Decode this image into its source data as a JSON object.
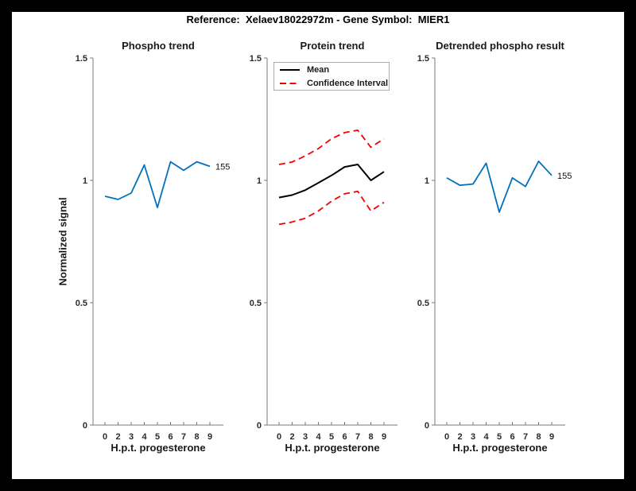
{
  "figure": {
    "suptitle": "Reference:  Xelaev18022972m - Gene Symbol:  MIER1",
    "frame_color": "#000000",
    "canvas_color": "#ffffff"
  },
  "axes": {
    "ylabel": "Normalized signal",
    "xlabel": "H.p.t. progesterone",
    "axis_color": "#7a7a7a",
    "tick_text_color": "#2b2b2b"
  },
  "chart_data": [
    {
      "type": "line",
      "title": "Phospho trend",
      "xlabel": "H.p.t. progesterone",
      "ylabel": "Normalized signal",
      "x_tick_labels": [
        "0",
        "2",
        "3",
        "4",
        "5",
        "6",
        "7",
        "8",
        "9"
      ],
      "y_tick_labels": [
        "0",
        "0.5",
        "1",
        "1.5"
      ],
      "ylim": [
        0,
        1.5
      ],
      "grid": false,
      "right_label": "155",
      "series": [
        {
          "name": "phospho-signal",
          "color": "#0072BD",
          "style": "solid",
          "width": 1.8,
          "values": [
            0.935,
            0.922,
            0.948,
            1.063,
            0.889,
            1.076,
            1.041,
            1.076,
            1.057
          ]
        }
      ]
    },
    {
      "type": "line",
      "title": "Protein trend",
      "xlabel": "H.p.t. progesterone",
      "x_tick_labels": [
        "0",
        "2",
        "3",
        "4",
        "5",
        "6",
        "7",
        "8",
        "9"
      ],
      "y_tick_labels": [
        "0",
        "0.5",
        "1",
        "1.5"
      ],
      "ylim": [
        0,
        1.5
      ],
      "grid": false,
      "legend_position": "top-left",
      "legend": [
        {
          "label": "Mean",
          "color": "#000000",
          "style": "solid"
        },
        {
          "label": "Confidence Interval",
          "color": "#f50000",
          "style": "dashed"
        }
      ],
      "series": [
        {
          "name": "mean",
          "color": "#000000",
          "style": "solid",
          "width": 2,
          "values": [
            0.93,
            0.94,
            0.96,
            0.99,
            1.02,
            1.055,
            1.065,
            1.0,
            1.035
          ]
        },
        {
          "name": "ci-upper",
          "color": "#f50000",
          "style": "dashed",
          "width": 1.8,
          "values": [
            1.065,
            1.075,
            1.1,
            1.13,
            1.17,
            1.195,
            1.205,
            1.135,
            1.17
          ]
        },
        {
          "name": "ci-lower",
          "color": "#f50000",
          "style": "dashed",
          "width": 1.8,
          "values": [
            0.82,
            0.83,
            0.845,
            0.875,
            0.915,
            0.945,
            0.955,
            0.875,
            0.91
          ]
        }
      ]
    },
    {
      "type": "line",
      "title": "Detrended phospho result",
      "xlabel": "H.p.t. progesterone",
      "x_tick_labels": [
        "0",
        "2",
        "3",
        "4",
        "5",
        "6",
        "7",
        "8",
        "9"
      ],
      "y_tick_labels": [
        "0",
        "0.5",
        "1",
        "1.5"
      ],
      "ylim": [
        0,
        1.5
      ],
      "grid": false,
      "right_label": "155",
      "series": [
        {
          "name": "detrended-signal",
          "color": "#0072BD",
          "style": "solid",
          "width": 1.8,
          "values": [
            1.01,
            0.98,
            0.985,
            1.07,
            0.87,
            1.01,
            0.975,
            1.078,
            1.02
          ]
        }
      ]
    }
  ]
}
